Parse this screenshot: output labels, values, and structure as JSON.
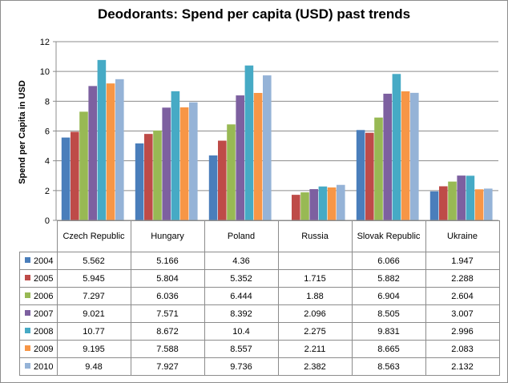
{
  "chart_data": {
    "type": "bar",
    "title": "Deodorants: Spend per capita (USD) past trends",
    "xlabel": "",
    "ylabel": "Spend per Capita in USD",
    "ylim": [
      0,
      12
    ],
    "yticks": [
      "0",
      "2",
      "4",
      "6",
      "8",
      "10",
      "12"
    ],
    "grid": "horizontal",
    "legend": "data-table-below",
    "categories": [
      "Czech Republic",
      "Hungary",
      "Poland",
      "Russia",
      "Slovak Republic",
      "Ukraine"
    ],
    "series": [
      {
        "name": "2004",
        "color": "#4a7ebb",
        "values": [
          5.562,
          5.166,
          4.36,
          null,
          6.066,
          1.947
        ],
        "labels": [
          "5.562",
          "5.166",
          "4.36",
          "",
          "6.066",
          "1.947"
        ]
      },
      {
        "name": "2005",
        "color": "#be4b48",
        "values": [
          5.945,
          5.804,
          5.352,
          1.715,
          5.882,
          2.288
        ],
        "labels": [
          "5.945",
          "5.804",
          "5.352",
          "1.715",
          "5.882",
          "2.288"
        ]
      },
      {
        "name": "2006",
        "color": "#98b954",
        "values": [
          7.297,
          6.036,
          6.444,
          1.88,
          6.904,
          2.604
        ],
        "labels": [
          "7.297",
          "6.036",
          "6.444",
          "1.88",
          "6.904",
          "2.604"
        ]
      },
      {
        "name": "2007",
        "color": "#7d60a0",
        "values": [
          9.021,
          7.571,
          8.392,
          2.096,
          8.505,
          3.007
        ],
        "labels": [
          "9.021",
          "7.571",
          "8.392",
          "2.096",
          "8.505",
          "3.007"
        ]
      },
      {
        "name": "2008",
        "color": "#46aac5",
        "values": [
          10.77,
          8.672,
          10.4,
          2.275,
          9.831,
          2.996
        ],
        "labels": [
          "10.77",
          "8.672",
          "10.4",
          "2.275",
          "9.831",
          "2.996"
        ]
      },
      {
        "name": "2009",
        "color": "#f79646",
        "values": [
          9.195,
          7.588,
          8.557,
          2.211,
          8.665,
          2.083
        ],
        "labels": [
          "9.195",
          "7.588",
          "8.557",
          "2.211",
          "8.665",
          "2.083"
        ]
      },
      {
        "name": "2010",
        "color": "#95b3d7",
        "values": [
          9.48,
          7.927,
          9.736,
          2.382,
          8.563,
          2.132
        ],
        "labels": [
          "9.48",
          "7.927",
          "9.736",
          "2.382",
          "8.563",
          "2.132"
        ]
      }
    ]
  }
}
